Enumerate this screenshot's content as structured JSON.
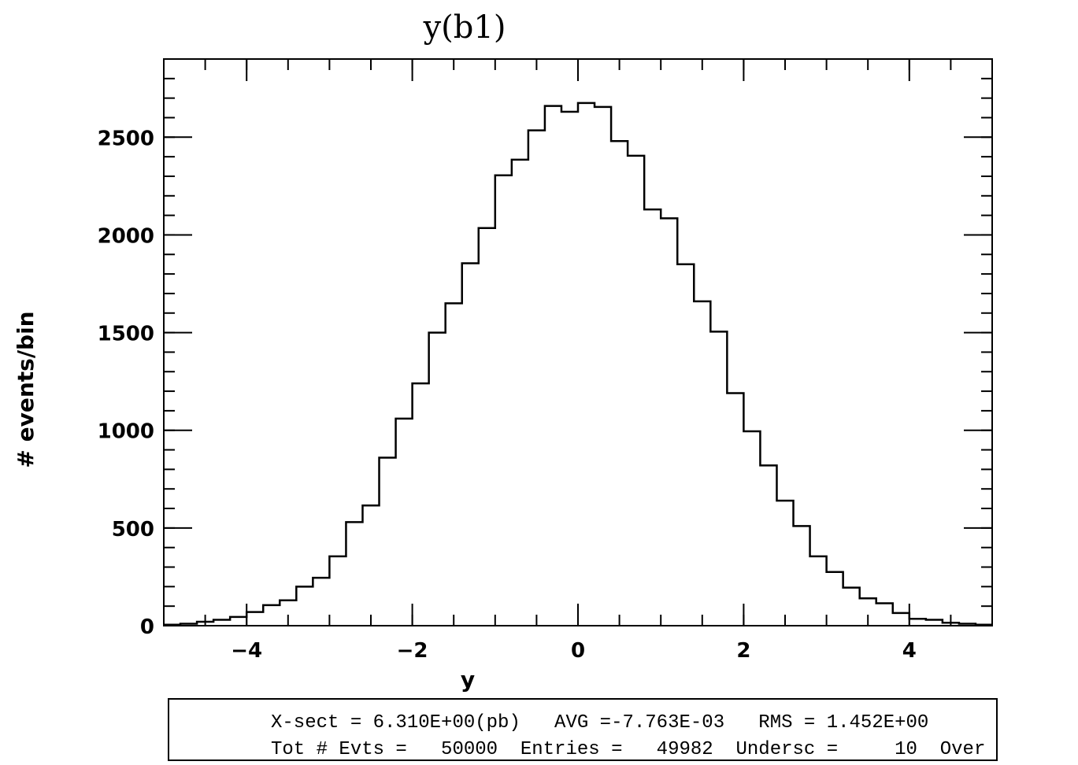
{
  "chart_data": {
    "type": "bar",
    "title": "y(b1)",
    "xlabel": "y",
    "ylabel": "# events/bin",
    "xlim": [
      -5,
      5
    ],
    "ylim": [
      0,
      2900
    ],
    "x_ticks": [
      -4,
      -2,
      0,
      2,
      4
    ],
    "x_tick_labels": [
      "−4",
      "−2",
      "0",
      "2",
      "4"
    ],
    "y_ticks": [
      0,
      500,
      1000,
      1500,
      2000,
      2500
    ],
    "y_tick_labels": [
      "0",
      "500",
      "1000",
      "1500",
      "2000",
      "2500"
    ],
    "bin_edges": [
      -5.0,
      -4.8,
      -4.6,
      -4.4,
      -4.2,
      -4.0,
      -3.8,
      -3.6,
      -3.4,
      -3.2,
      -3.0,
      -2.8,
      -2.6,
      -2.4,
      -2.2,
      -2.0,
      -1.8,
      -1.6,
      -1.4,
      -1.2,
      -1.0,
      -0.8,
      -0.6,
      -0.4,
      -0.2,
      0.0,
      0.2,
      0.4,
      0.6,
      0.8,
      1.0,
      1.2,
      1.4,
      1.6,
      1.8,
      2.0,
      2.2,
      2.4,
      2.6,
      2.8,
      3.0,
      3.2,
      3.4,
      3.6,
      3.8,
      4.0,
      4.2,
      4.4,
      4.6,
      4.8,
      5.0
    ],
    "values": [
      5,
      10,
      20,
      30,
      45,
      70,
      105,
      130,
      200,
      245,
      355,
      530,
      615,
      860,
      1060,
      1240,
      1500,
      1650,
      1855,
      2035,
      2305,
      2385,
      2535,
      2660,
      2630,
      2675,
      2655,
      2480,
      2405,
      2130,
      2085,
      1850,
      1660,
      1505,
      1190,
      995,
      820,
      640,
      510,
      355,
      275,
      195,
      140,
      115,
      65,
      35,
      30,
      15,
      10,
      5
    ],
    "grid": false,
    "legend": "none"
  },
  "stats": {
    "line1": "X-sect = 6.310E+00(pb)   AVG =-7.763E-03   RMS = 1.452E+00",
    "line2": "Tot # Evts =   50000  Entries =   49982  Undersc =     10  Over"
  }
}
